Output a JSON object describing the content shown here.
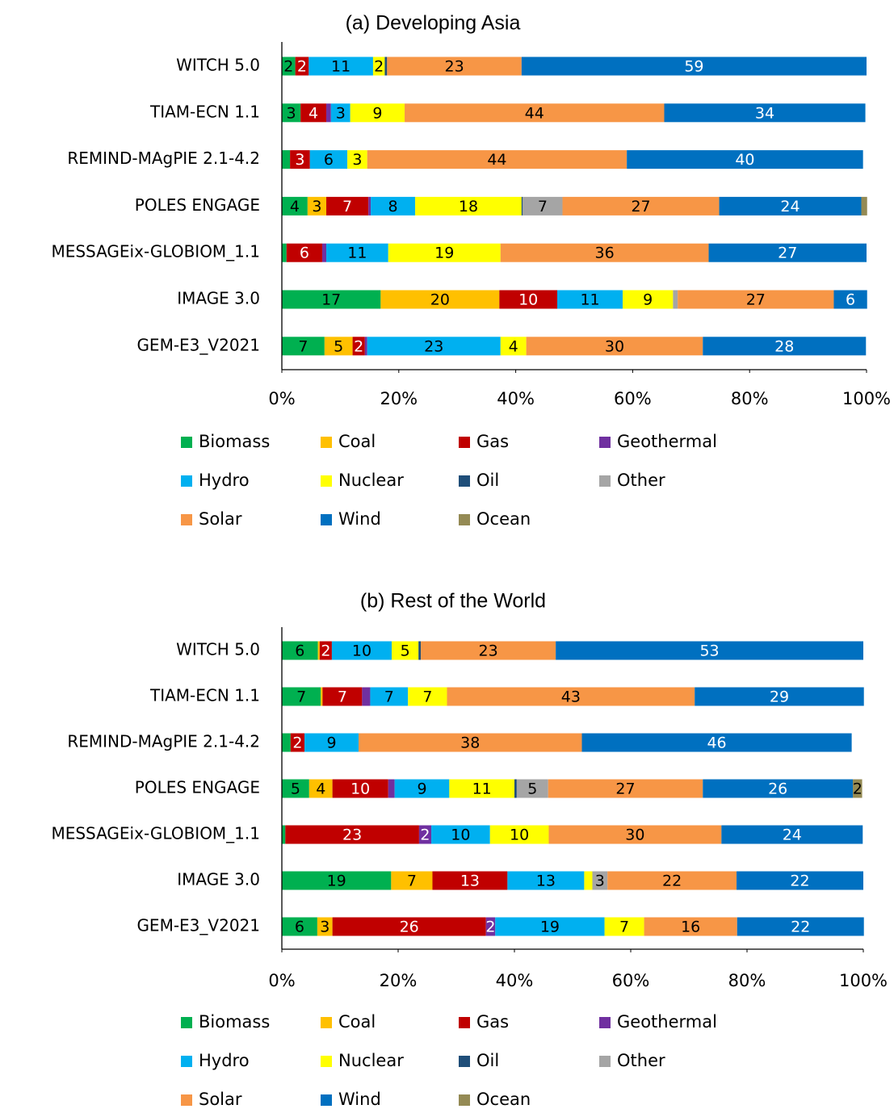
{
  "chart_data": [
    {
      "type": "bar",
      "orientation": "horizontal",
      "stacked": true,
      "title": "(a)  Developing Asia",
      "categories": [
        "WITCH 5.0",
        "TIAM-ECN 1.1",
        "REMIND-MAgPIE 2.1-4.2",
        "POLES ENGAGE",
        "MESSAGEix-GLOBIOM_1.1",
        "IMAGE 3.0",
        "GEM-E3_V2021"
      ],
      "xlim": [
        0,
        100
      ],
      "xticks": [
        {
          "value": 0,
          "label": "0%"
        },
        {
          "value": 20,
          "label": "20%"
        },
        {
          "value": 40,
          "label": "40%"
        },
        {
          "value": 60,
          "label": "60%"
        },
        {
          "value": 80,
          "label": "80%"
        },
        {
          "value": 100,
          "label": "100%"
        }
      ],
      "grid": false,
      "legend": "bottom",
      "series": [
        {
          "name": "Biomass",
          "color": "#00b050",
          "values": [
            2.3,
            3.2,
            1.4,
            4.4,
            0.8,
            16.9,
            7.3
          ],
          "value_labels": [
            "2",
            "3",
            null,
            "4",
            null,
            "17",
            "7"
          ]
        },
        {
          "name": "Coal",
          "color": "#ffc000",
          "values": [
            null,
            null,
            null,
            3.2,
            null,
            20.3,
            4.8
          ],
          "value_labels": [
            null,
            null,
            null,
            "3",
            null,
            "20",
            "5"
          ]
        },
        {
          "name": "Gas",
          "color": "#c00000",
          "values": [
            2.3,
            4.4,
            3.4,
            7.2,
            6.1,
            9.9,
            2.1
          ],
          "value_labels": [
            "2",
            "4",
            "3",
            "7",
            "6",
            "10",
            "2"
          ]
        },
        {
          "name": "Geothermal",
          "color": "#7030a0",
          "values": [
            null,
            0.8,
            null,
            0.4,
            0.7,
            null,
            0.4
          ],
          "value_labels": [
            null,
            null,
            null,
            null,
            null,
            null,
            null
          ]
        },
        {
          "name": "Hydro",
          "color": "#00b0f0",
          "values": [
            11,
            3.3,
            6.4,
            7.6,
            10.6,
            11.2,
            22.8
          ],
          "value_labels": [
            "11",
            "3",
            "6",
            "8",
            "11",
            "11",
            "23"
          ]
        },
        {
          "name": "Nuclear",
          "color": "#ffff00",
          "values": [
            2,
            9.3,
            3.4,
            18.2,
            19.2,
            8.6,
            4.4
          ],
          "value_labels": [
            "2",
            "9",
            "3",
            "18",
            "19",
            "9",
            "4"
          ]
        },
        {
          "name": "Oil",
          "color": "#1f4e79",
          "values": [
            0.4,
            null,
            null,
            0.2,
            null,
            null,
            null
          ],
          "value_labels": [
            null,
            null,
            null,
            null,
            null,
            null,
            null
          ]
        },
        {
          "name": "Other",
          "color": "#a5a5a5",
          "values": [
            null,
            null,
            null,
            6.8,
            null,
            0.8,
            null
          ],
          "value_labels": [
            null,
            null,
            null,
            "7",
            null,
            null,
            null
          ]
        },
        {
          "name": "Solar",
          "color": "#f79646",
          "values": [
            23,
            44.4,
            44.4,
            26.8,
            35.6,
            26.7,
            30.2
          ],
          "value_labels": [
            "23",
            "44",
            "44",
            "27",
            "36",
            "27",
            "30"
          ]
        },
        {
          "name": "Wind",
          "color": "#0070c0",
          "values": [
            59,
            34.4,
            40.4,
            24.3,
            27,
            5.7,
            27.9
          ],
          "value_labels": [
            "59",
            "34",
            "40",
            "24",
            "27",
            "6",
            "28"
          ]
        },
        {
          "name": "Ocean",
          "color": "#948a54",
          "values": [
            null,
            null,
            null,
            1,
            null,
            null,
            null
          ],
          "value_labels": [
            null,
            null,
            null,
            null,
            null,
            null,
            null
          ]
        }
      ]
    },
    {
      "type": "bar",
      "orientation": "horizontal",
      "stacked": true,
      "title": "(b) Rest of the World",
      "categories": [
        "WITCH 5.0",
        "TIAM-ECN 1.1",
        "REMIND-MAgPIE 2.1-4.2",
        "POLES ENGAGE",
        "MESSAGEix-GLOBIOM_1.1",
        "IMAGE 3.0",
        "GEM-E3_V2021"
      ],
      "xlim": [
        0,
        100
      ],
      "xticks": [
        {
          "value": 0,
          "label": "0%"
        },
        {
          "value": 20,
          "label": "20%"
        },
        {
          "value": 40,
          "label": "40%"
        },
        {
          "value": 60,
          "label": "60%"
        },
        {
          "value": 80,
          "label": "80%"
        },
        {
          "value": 100,
          "label": "100%"
        }
      ],
      "grid": false,
      "legend": "bottom",
      "series": [
        {
          "name": "Biomass",
          "color": "#00b050",
          "values": [
            6.2,
            6.7,
            1.5,
            4.7,
            0.6,
            18.8,
            6.1
          ],
          "value_labels": [
            "6",
            "7",
            null,
            "5",
            null,
            "19",
            "6"
          ]
        },
        {
          "name": "Coal",
          "color": "#ffc000",
          "values": [
            0.3,
            0.3,
            null,
            4,
            null,
            7.1,
            2.6
          ],
          "value_labels": [
            null,
            null,
            null,
            "4",
            null,
            "7",
            "3"
          ]
        },
        {
          "name": "Gas",
          "color": "#c00000",
          "values": [
            2.1,
            6.8,
            2.4,
            9.6,
            23,
            12.9,
            26.4
          ],
          "value_labels": [
            "2",
            "7",
            "2",
            "10",
            "23",
            "13",
            "26"
          ]
        },
        {
          "name": "Geothermal",
          "color": "#7030a0",
          "values": [
            null,
            1.4,
            null,
            1.1,
            2.1,
            null,
            1.6
          ],
          "value_labels": [
            null,
            null,
            null,
            null,
            "2",
            null,
            "2"
          ]
        },
        {
          "name": "Hydro",
          "color": "#00b0f0",
          "values": [
            10.3,
            6.5,
            9.3,
            9.4,
            10.1,
            13.2,
            18.8
          ],
          "value_labels": [
            "10",
            "7",
            "9",
            "9",
            "10",
            "13",
            "19"
          ]
        },
        {
          "name": "Nuclear",
          "color": "#ffff00",
          "values": [
            4.6,
            6.7,
            null,
            11.2,
            10.1,
            1.4,
            6.8
          ],
          "value_labels": [
            "5",
            "7",
            null,
            "11",
            "10",
            null,
            "7"
          ]
        },
        {
          "name": "Oil",
          "color": "#1f4e79",
          "values": [
            0.4,
            null,
            null,
            0.4,
            null,
            null,
            null
          ],
          "value_labels": [
            null,
            null,
            null,
            null,
            null,
            null,
            null
          ]
        },
        {
          "name": "Other",
          "color": "#a5a5a5",
          "values": [
            null,
            null,
            null,
            5.4,
            null,
            2.6,
            null
          ],
          "value_labels": [
            null,
            null,
            null,
            "5",
            null,
            "3",
            null
          ]
        },
        {
          "name": "Solar",
          "color": "#f79646",
          "values": [
            23.2,
            42.6,
            38.4,
            26.6,
            29.7,
            22.2,
            16
          ],
          "value_labels": [
            "23",
            "43",
            "38",
            "27",
            "30",
            "22",
            "16"
          ]
        },
        {
          "name": "Wind",
          "color": "#0070c0",
          "values": [
            52.9,
            29.1,
            46.4,
            25.8,
            24.3,
            21.8,
            21.8
          ],
          "value_labels": [
            "53",
            "29",
            "46",
            "26",
            "24",
            "22",
            "22"
          ]
        },
        {
          "name": "Ocean",
          "color": "#948a54",
          "values": [
            null,
            null,
            null,
            1.6,
            null,
            null,
            null
          ],
          "value_labels": [
            null,
            null,
            null,
            "2",
            null,
            null,
            null
          ]
        }
      ]
    }
  ]
}
